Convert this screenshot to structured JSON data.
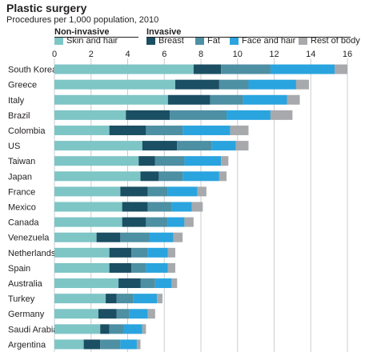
{
  "chart_data": {
    "type": "bar",
    "orientation": "horizontal",
    "stacked": true,
    "title": "Plastic surgery",
    "subtitle": "Procedures per 1,000 population, 2010",
    "groups": [
      {
        "label": "Non-invasive",
        "series": [
          "Skin and hair"
        ]
      },
      {
        "label": "Invasive",
        "series": [
          "Breast",
          "Fat",
          "Face and hair",
          "Rest of body"
        ]
      }
    ],
    "xlim": [
      0,
      16
    ],
    "xticks": [
      0,
      2,
      4,
      6,
      8,
      10,
      12,
      14,
      16
    ],
    "grid": true,
    "categories": [
      "South Korea",
      "Greece",
      "Italy",
      "Brazil",
      "Colombia",
      "US",
      "Taiwan",
      "Japan",
      "France",
      "Mexico",
      "Canada",
      "Venezuela",
      "Netherlands",
      "Spain",
      "Australia",
      "Turkey",
      "Germany",
      "Saudi Arabia",
      "Argentina"
    ],
    "series": [
      {
        "name": "Skin and hair",
        "color": "#7ec5c6",
        "values": [
          7.6,
          6.6,
          6.2,
          3.9,
          3.0,
          4.8,
          4.6,
          4.7,
          3.6,
          3.7,
          3.7,
          2.3,
          3.0,
          3.0,
          3.5,
          2.8,
          2.4,
          2.5,
          1.6
        ]
      },
      {
        "name": "Breast",
        "color": "#1b4f63",
        "values": [
          1.5,
          2.4,
          2.3,
          2.4,
          2.0,
          1.9,
          0.9,
          1.0,
          1.5,
          1.4,
          1.3,
          1.3,
          1.2,
          1.2,
          1.2,
          0.6,
          1.0,
          0.5,
          0.9
        ]
      },
      {
        "name": "Fat",
        "color": "#4d8fa3",
        "values": [
          2.7,
          1.6,
          1.8,
          3.1,
          2.0,
          1.9,
          1.6,
          1.3,
          1.1,
          1.3,
          1.2,
          1.6,
          0.9,
          0.8,
          0.8,
          0.9,
          0.7,
          0.8,
          1.1
        ]
      },
      {
        "name": "Face and hair",
        "color": "#2aa4df",
        "values": [
          3.5,
          2.6,
          2.4,
          2.4,
          2.6,
          1.3,
          2.0,
          2.0,
          1.6,
          1.1,
          0.9,
          1.3,
          1.1,
          1.2,
          0.9,
          1.3,
          1.0,
          1.0,
          0.9
        ]
      },
      {
        "name": "Rest of body",
        "color": "#a7a9ac",
        "values": [
          0.7,
          0.7,
          0.7,
          1.2,
          1.0,
          0.7,
          0.4,
          0.4,
          0.5,
          0.6,
          0.5,
          0.5,
          0.4,
          0.4,
          0.3,
          0.3,
          0.4,
          0.2,
          0.2
        ]
      }
    ]
  }
}
